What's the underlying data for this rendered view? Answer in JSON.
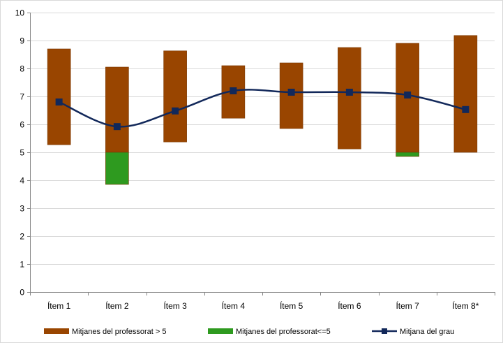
{
  "chart_data": {
    "type": "bar",
    "subtype": "floating-range-bars-with-line",
    "categories": [
      "Ítem 1",
      "Ítem 2",
      "Ítem 3",
      "Ítem 4",
      "Ítem 5",
      "Ítem 6",
      "Ítem 7",
      "Ítem 8*"
    ],
    "ylim": [
      0,
      10
    ],
    "yticks": [
      "0",
      "1",
      "2",
      "3",
      "4",
      "5",
      "6",
      "7",
      "8",
      "9",
      "10"
    ],
    "grid": "horizontal",
    "legend_position": "bottom",
    "series": [
      {
        "name": "Mitjanes del professorat > 5",
        "kind": "range-bar",
        "color": "#994500",
        "ranges": [
          [
            5.27,
            8.7
          ],
          [
            5.0,
            8.05
          ],
          [
            5.37,
            8.63
          ],
          [
            6.22,
            8.1
          ],
          [
            5.85,
            8.2
          ],
          [
            5.12,
            8.75
          ],
          [
            5.0,
            8.9
          ],
          [
            5.0,
            9.18
          ]
        ]
      },
      {
        "name": "Mitjanes del professorat<=5",
        "kind": "range-bar",
        "color": "#2e9a1f",
        "ranges": [
          null,
          [
            3.85,
            5.0
          ],
          null,
          null,
          null,
          null,
          [
            4.85,
            5.0
          ],
          null
        ]
      },
      {
        "name": "Mitjana del grau",
        "kind": "line",
        "color": "#12285a",
        "marker": "square",
        "values": [
          6.8,
          5.92,
          6.48,
          7.2,
          7.15,
          7.15,
          7.05,
          6.53
        ]
      }
    ]
  }
}
